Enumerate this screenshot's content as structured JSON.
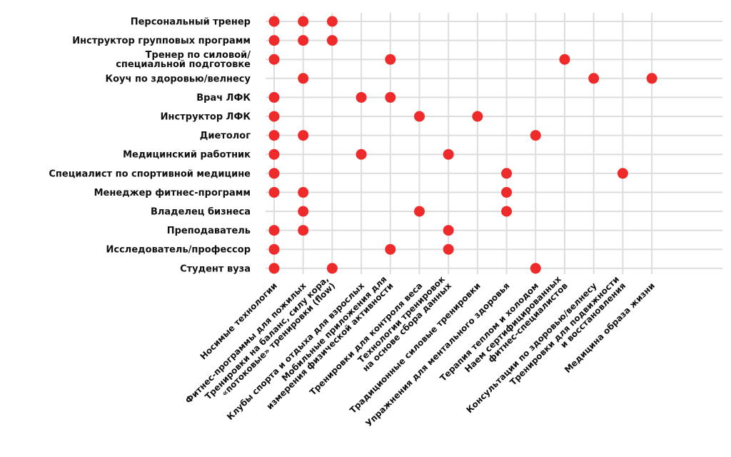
{
  "chart_data": {
    "type": "scatter",
    "title": "",
    "rows": [
      [
        "Персональный тренер"
      ],
      [
        "Инструктор групповых программ"
      ],
      [
        "Тренер по силовой/",
        "специальной подготовке"
      ],
      [
        "Коуч по здоровью/велнесу"
      ],
      [
        "Врач ЛФК"
      ],
      [
        "Инструктор ЛФК"
      ],
      [
        "Диетолог"
      ],
      [
        "Медицинский работник"
      ],
      [
        "Специалист по спортивной медицине"
      ],
      [
        "Менеджер фитнес-программ"
      ],
      [
        "Владелец бизнеса"
      ],
      [
        "Преподаватель"
      ],
      [
        "Исследователь/профессор"
      ],
      [
        "Студент вуза"
      ]
    ],
    "columns": [
      [
        "Носимые технологии"
      ],
      [
        "Фитнес-программы для пожилых"
      ],
      [
        "Тренировки на баланс, силу кора,",
        "«потоковые» тренировки (flow)"
      ],
      [
        "Клубы спорта и отдыха для взрослых"
      ],
      [
        "Мобильные приложения для",
        "измерения физической активности"
      ],
      [
        "Тренировки для контроля веса"
      ],
      [
        "Технологии тренировок",
        "на основе сбора данных"
      ],
      [
        "Традиционные силовые тренировки"
      ],
      [
        "Упражнения для ментального здоровья"
      ],
      [
        "Терапия теплом и холодом"
      ],
      [
        "Наем сертифицированных",
        "фитнес-специалистов"
      ],
      [
        "Консультации по здоровью/велнесу"
      ],
      [
        "Тренировки для подвижности",
        "и восстановления"
      ],
      [
        "Медицина образа жизни"
      ]
    ],
    "points": [
      [
        0,
        0
      ],
      [
        0,
        1
      ],
      [
        0,
        2
      ],
      [
        1,
        0
      ],
      [
        1,
        1
      ],
      [
        1,
        2
      ],
      [
        2,
        0
      ],
      [
        2,
        4
      ],
      [
        2,
        10
      ],
      [
        3,
        1
      ],
      [
        3,
        11
      ],
      [
        3,
        13
      ],
      [
        4,
        0
      ],
      [
        4,
        3
      ],
      [
        4,
        4
      ],
      [
        5,
        0
      ],
      [
        5,
        5
      ],
      [
        5,
        7
      ],
      [
        6,
        0
      ],
      [
        6,
        1
      ],
      [
        6,
        9
      ],
      [
        7,
        0
      ],
      [
        7,
        3
      ],
      [
        7,
        6
      ],
      [
        8,
        0
      ],
      [
        8,
        8
      ],
      [
        8,
        12
      ],
      [
        9,
        0
      ],
      [
        9,
        1
      ],
      [
        9,
        8
      ],
      [
        10,
        1
      ],
      [
        10,
        5
      ],
      [
        10,
        8
      ],
      [
        11,
        0
      ],
      [
        11,
        1
      ],
      [
        11,
        6
      ],
      [
        12,
        0
      ],
      [
        12,
        4
      ],
      [
        12,
        6
      ],
      [
        13,
        0
      ],
      [
        13,
        2
      ],
      [
        13,
        9
      ]
    ],
    "colors": {
      "dot": "#ee2a2a",
      "grid": "#dddddd",
      "text": "#111111"
    }
  }
}
